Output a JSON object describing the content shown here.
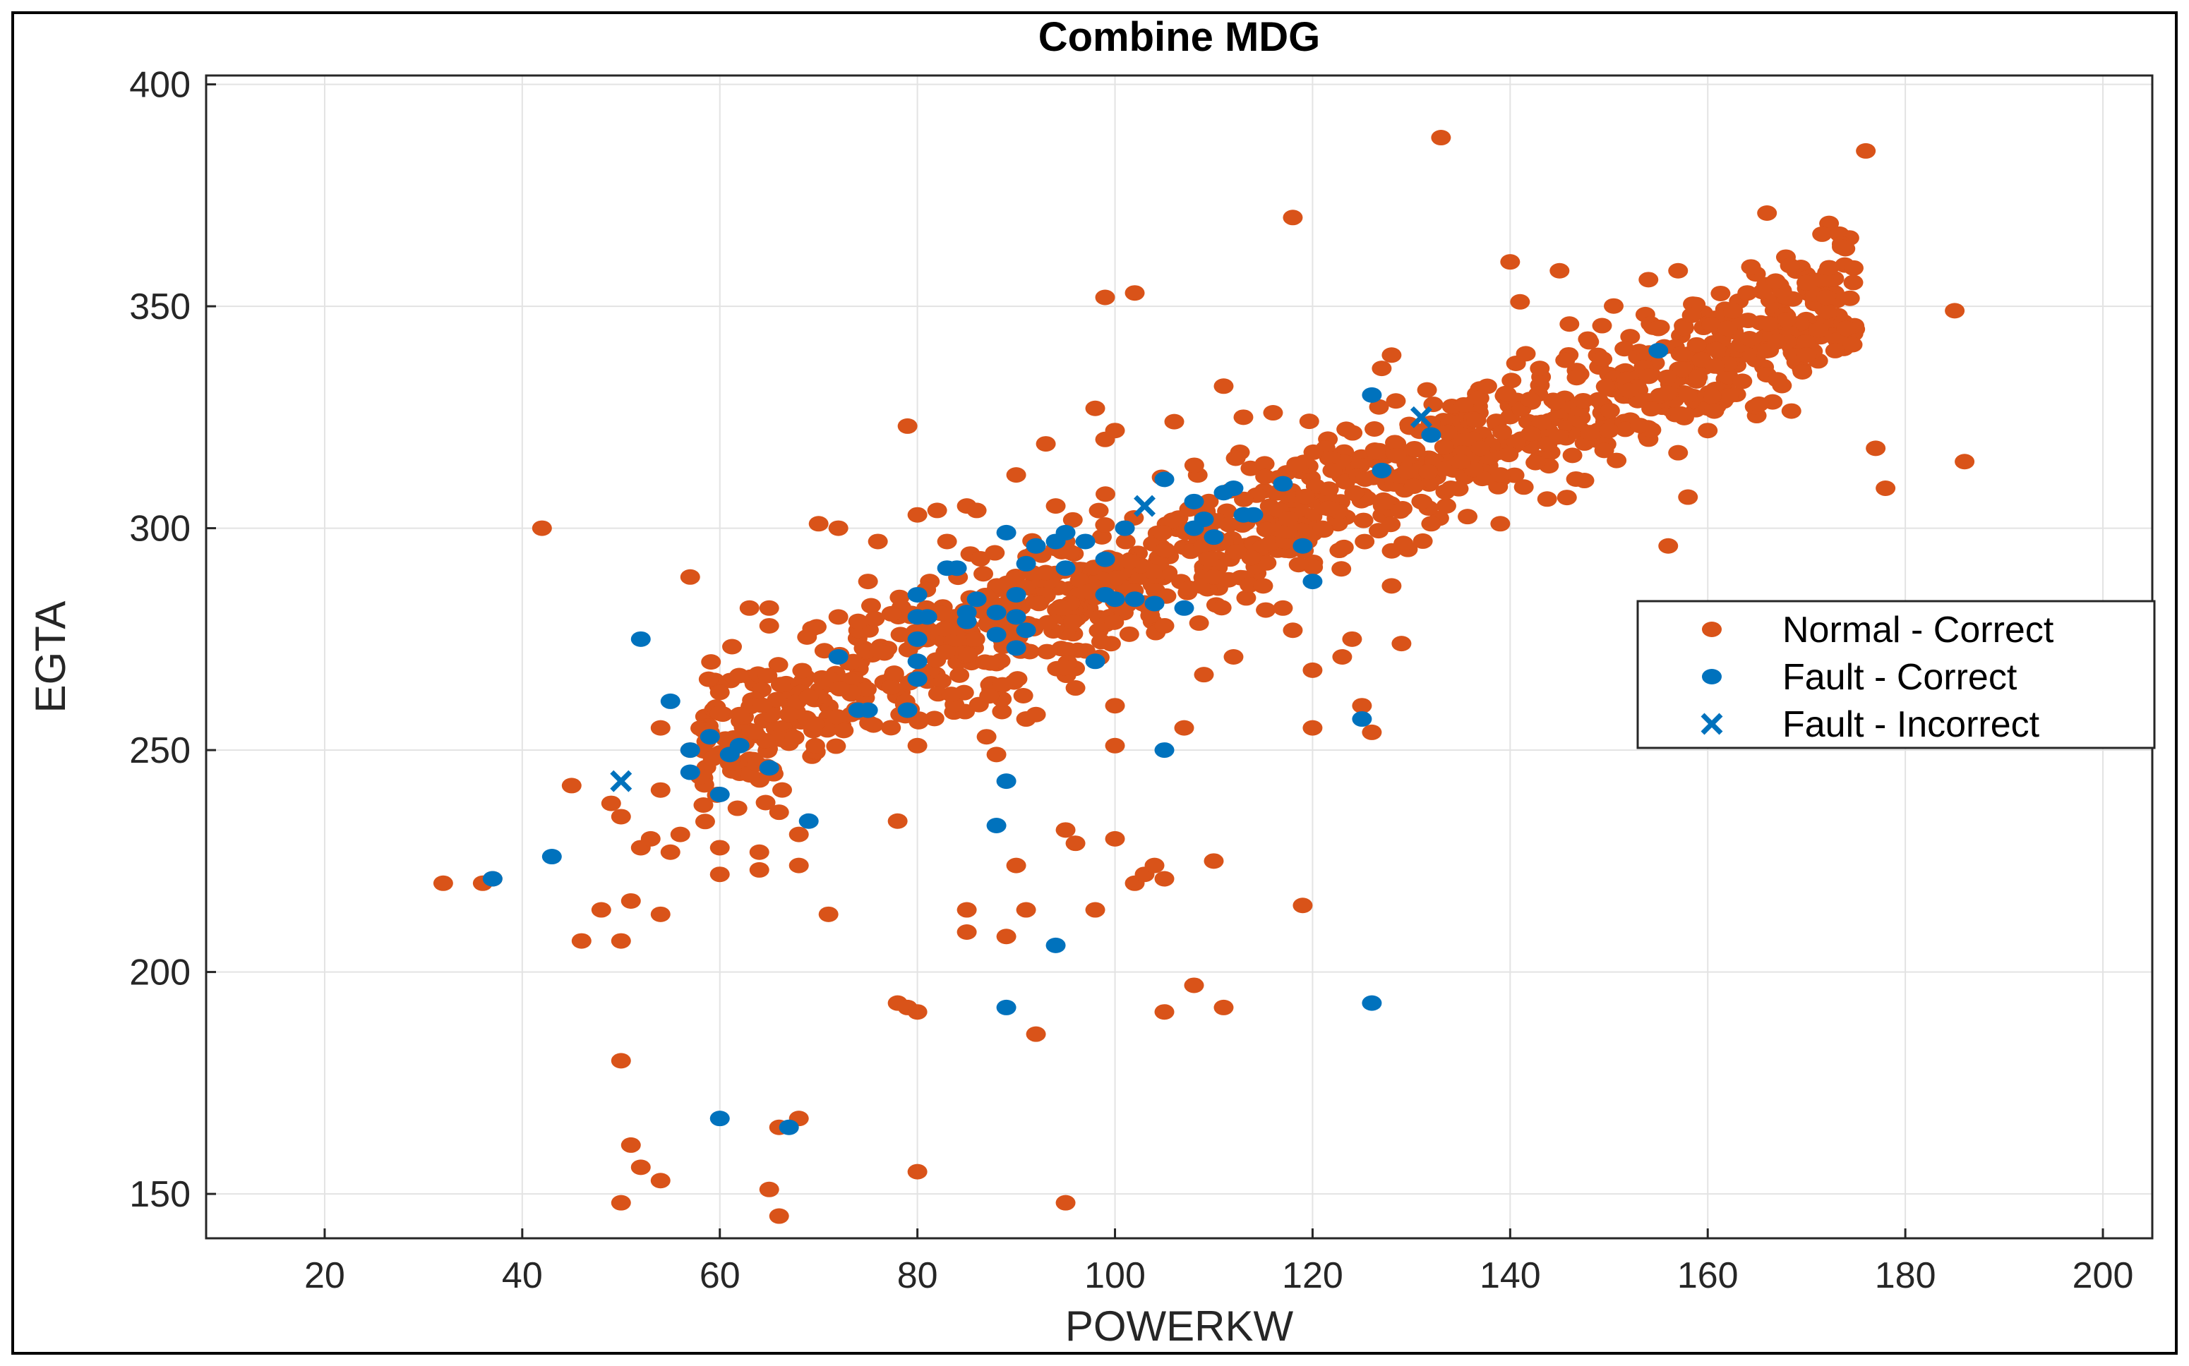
{
  "chart_data": {
    "type": "scatter",
    "title": "Combine MDG",
    "xlabel": "POWERKW",
    "ylabel": "EGTA",
    "xlim": [
      8,
      205
    ],
    "ylim": [
      140,
      402
    ],
    "xticks": [
      20,
      40,
      60,
      80,
      100,
      120,
      140,
      160,
      180,
      200
    ],
    "yticks": [
      150,
      200,
      250,
      300,
      350,
      400
    ],
    "grid": true,
    "legend_position": "right",
    "colors": {
      "normal": "#D95319",
      "fault": "#0072BD"
    },
    "series": [
      {
        "name": "Normal - Correct",
        "marker": "circle",
        "color": "#D95319",
        "band": {
          "x_range": [
            58,
            175
          ],
          "slope": 0.872,
          "intercept": 200,
          "spread": 8,
          "count": 1100
        },
        "points": [
          [
            32,
            220
          ],
          [
            36,
            220
          ],
          [
            37,
            221
          ],
          [
            42,
            300
          ],
          [
            45,
            242
          ],
          [
            46,
            207
          ],
          [
            48,
            214
          ],
          [
            49,
            238
          ],
          [
            50,
            207
          ],
          [
            50,
            180
          ],
          [
            50,
            235
          ],
          [
            50,
            148
          ],
          [
            51,
            161
          ],
          [
            51,
            216
          ],
          [
            52,
            228
          ],
          [
            52,
            156
          ],
          [
            53,
            230
          ],
          [
            54,
            241
          ],
          [
            54,
            255
          ],
          [
            54,
            213
          ],
          [
            54,
            153
          ],
          [
            55,
            227
          ],
          [
            56,
            231
          ],
          [
            57,
            250
          ],
          [
            57,
            289
          ],
          [
            58,
            244
          ],
          [
            59,
            254
          ],
          [
            60,
            222
          ],
          [
            60,
            228
          ],
          [
            60,
            263
          ],
          [
            61,
            251
          ],
          [
            61,
            247
          ],
          [
            62,
            258
          ],
          [
            63,
            282
          ],
          [
            64,
            223
          ],
          [
            64,
            227
          ],
          [
            65,
            151
          ],
          [
            65,
            282
          ],
          [
            65,
            278
          ],
          [
            66,
            145
          ],
          [
            66,
            236
          ],
          [
            66,
            165
          ],
          [
            67,
            258
          ],
          [
            68,
            231
          ],
          [
            68,
            224
          ],
          [
            68,
            167
          ],
          [
            69,
            262
          ],
          [
            70,
            301
          ],
          [
            71,
            213
          ],
          [
            72,
            300
          ],
          [
            72,
            280
          ],
          [
            74,
            277
          ],
          [
            74,
            279
          ],
          [
            75,
            288
          ],
          [
            76,
            297
          ],
          [
            78,
            234
          ],
          [
            78,
            193
          ],
          [
            79,
            323
          ],
          [
            79,
            192
          ],
          [
            80,
            191
          ],
          [
            80,
            155
          ],
          [
            80,
            303
          ],
          [
            80,
            251
          ],
          [
            82,
            304
          ],
          [
            83,
            297
          ],
          [
            85,
            305
          ],
          [
            85,
            209
          ],
          [
            85,
            214
          ],
          [
            86,
            304
          ],
          [
            87,
            253
          ],
          [
            88,
            249
          ],
          [
            89,
            208
          ],
          [
            90,
            224
          ],
          [
            90,
            312
          ],
          [
            91,
            214
          ],
          [
            91,
            257
          ],
          [
            92,
            186
          ],
          [
            92,
            258
          ],
          [
            93,
            319
          ],
          [
            93,
            290
          ],
          [
            94,
            305
          ],
          [
            95,
            232
          ],
          [
            95,
            148
          ],
          [
            95,
            297
          ],
          [
            96,
            264
          ],
          [
            96,
            229
          ],
          [
            98,
            214
          ],
          [
            98,
            327
          ],
          [
            99,
            352
          ],
          [
            99,
            320
          ],
          [
            100,
            230
          ],
          [
            100,
            260
          ],
          [
            100,
            251
          ],
          [
            100,
            322
          ],
          [
            101,
            300
          ],
          [
            102,
            220
          ],
          [
            102,
            353
          ],
          [
            103,
            222
          ],
          [
            104,
            224
          ],
          [
            105,
            191
          ],
          [
            105,
            278
          ],
          [
            105,
            221
          ],
          [
            106,
            324
          ],
          [
            107,
            255
          ],
          [
            108,
            197
          ],
          [
            109,
            267
          ],
          [
            110,
            225
          ],
          [
            110,
            289
          ],
          [
            111,
            192
          ],
          [
            111,
            332
          ],
          [
            112,
            271
          ],
          [
            113,
            325
          ],
          [
            115,
            287
          ],
          [
            116,
            326
          ],
          [
            117,
            282
          ],
          [
            118,
            370
          ],
          [
            118,
            277
          ],
          [
            119,
            215
          ],
          [
            119,
            296
          ],
          [
            120,
            255
          ],
          [
            120,
            268
          ],
          [
            121,
            300
          ],
          [
            122,
            313
          ],
          [
            123,
            271
          ],
          [
            124,
            275
          ],
          [
            125,
            260
          ],
          [
            126,
            254
          ],
          [
            127,
            336
          ],
          [
            128,
            287
          ],
          [
            128,
            339
          ],
          [
            129,
            274
          ],
          [
            131,
            306
          ],
          [
            132,
            301
          ],
          [
            133,
            388
          ],
          [
            134,
            309
          ],
          [
            135,
            315
          ],
          [
            137,
            318
          ],
          [
            139,
            301
          ],
          [
            140,
            360
          ],
          [
            141,
            351
          ],
          [
            142,
            329
          ],
          [
            143,
            336
          ],
          [
            145,
            358
          ],
          [
            146,
            346
          ],
          [
            148,
            342
          ],
          [
            150,
            322
          ],
          [
            152,
            331
          ],
          [
            154,
            356
          ],
          [
            155,
            345
          ],
          [
            156,
            296
          ],
          [
            157,
            317
          ],
          [
            157,
            358
          ],
          [
            158,
            307
          ],
          [
            158,
            330
          ],
          [
            159,
            334
          ],
          [
            160,
            322
          ],
          [
            162,
            345
          ],
          [
            164,
            353
          ],
          [
            166,
            371
          ],
          [
            166,
            340
          ],
          [
            167,
            342
          ],
          [
            168,
            347
          ],
          [
            170,
            339
          ],
          [
            172,
            352
          ],
          [
            174,
            345
          ],
          [
            176,
            385
          ],
          [
            177,
            318
          ],
          [
            178,
            309
          ],
          [
            185,
            349
          ],
          [
            186,
            315
          ]
        ]
      },
      {
        "name": "Fault - Correct",
        "marker": "circle",
        "color": "#0072BD",
        "points": [
          [
            37,
            221
          ],
          [
            43,
            226
          ],
          [
            52,
            275
          ],
          [
            55,
            261
          ],
          [
            57,
            250
          ],
          [
            57,
            245
          ],
          [
            59,
            253
          ],
          [
            60,
            240
          ],
          [
            60,
            167
          ],
          [
            61,
            249
          ],
          [
            62,
            251
          ],
          [
            65,
            246
          ],
          [
            67,
            165
          ],
          [
            69,
            234
          ],
          [
            72,
            271
          ],
          [
            74,
            259
          ],
          [
            75,
            259
          ],
          [
            79,
            259
          ],
          [
            80,
            285
          ],
          [
            80,
            280
          ],
          [
            80,
            275
          ],
          [
            80,
            270
          ],
          [
            80,
            266
          ],
          [
            81,
            280
          ],
          [
            83,
            291
          ],
          [
            84,
            291
          ],
          [
            85,
            281
          ],
          [
            85,
            279
          ],
          [
            86,
            284
          ],
          [
            88,
            276
          ],
          [
            88,
            233
          ],
          [
            88,
            281
          ],
          [
            89,
            299
          ],
          [
            89,
            192
          ],
          [
            89,
            243
          ],
          [
            90,
            285
          ],
          [
            90,
            280
          ],
          [
            90,
            273
          ],
          [
            91,
            277
          ],
          [
            91,
            292
          ],
          [
            92,
            296
          ],
          [
            94,
            206
          ],
          [
            94,
            297
          ],
          [
            95,
            291
          ],
          [
            95,
            299
          ],
          [
            97,
            297
          ],
          [
            98,
            270
          ],
          [
            99,
            293
          ],
          [
            99,
            285
          ],
          [
            100,
            284
          ],
          [
            101,
            300
          ],
          [
            102,
            284
          ],
          [
            104,
            283
          ],
          [
            105,
            250
          ],
          [
            105,
            311
          ],
          [
            107,
            282
          ],
          [
            108,
            306
          ],
          [
            108,
            300
          ],
          [
            109,
            302
          ],
          [
            110,
            298
          ],
          [
            111,
            308
          ],
          [
            112,
            309
          ],
          [
            113,
            303
          ],
          [
            114,
            303
          ],
          [
            117,
            310
          ],
          [
            119,
            296
          ],
          [
            120,
            288
          ],
          [
            125,
            257
          ],
          [
            126,
            193
          ],
          [
            127,
            313
          ],
          [
            126,
            330
          ],
          [
            132,
            321
          ],
          [
            155,
            340
          ]
        ]
      },
      {
        "name": "Fault - Incorrect",
        "marker": "x",
        "color": "#0072BD",
        "points": [
          [
            50,
            243
          ],
          [
            103,
            305
          ],
          [
            131,
            325
          ]
        ]
      }
    ]
  }
}
